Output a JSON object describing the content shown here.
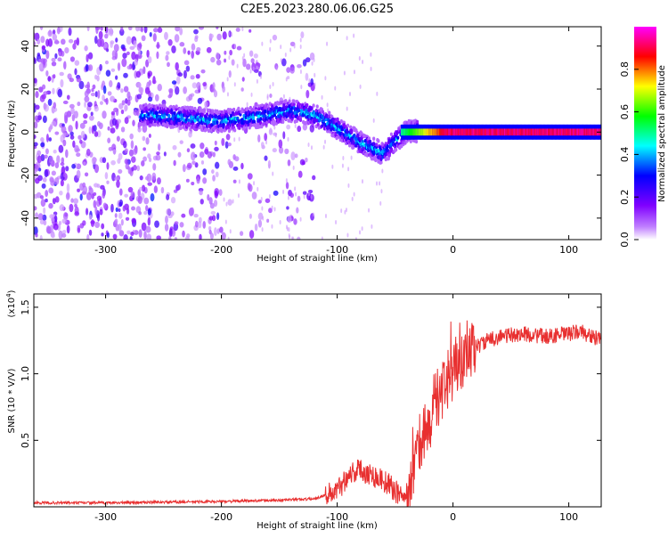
{
  "page": {
    "title": "C2E5.2023.280.06.06.G25"
  },
  "chart_data": [
    {
      "type": "heatmap",
      "title": "C2E5.2023.280.06.06.G25",
      "xlabel": "Height of straight line (km)",
      "ylabel": "Frequency (Hz)",
      "xlim": [
        -362,
        128
      ],
      "ylim": [
        -50,
        49
      ],
      "xticks": [
        -300,
        -200,
        -100,
        0,
        100
      ],
      "yticks": [
        -40,
        -20,
        0,
        20,
        40
      ],
      "colorbar": {
        "label": "Normalized spectral amplitude",
        "range": [
          0.0,
          1.0
        ],
        "ticks": [
          "0.0",
          "0.2",
          "0.4",
          "0.6",
          "0.8"
        ],
        "colors": [
          "#ffffff",
          "#8000ff",
          "#0000ff",
          "#00ffff",
          "#00ff00",
          "#ffff00",
          "#ff0000",
          "#ff00ff"
        ]
      },
      "features": [
        {
          "name": "broadband-noise",
          "x_range": [
            -362,
            -160
          ],
          "freq_range": [
            -50,
            49
          ],
          "amplitude": 0.15
        },
        {
          "name": "doppler-track",
          "points": [
            [
              -270,
              8
            ],
            [
              -240,
              7
            ],
            [
              -200,
              5
            ],
            [
              -170,
              7
            ],
            [
              -140,
              10
            ],
            [
              -120,
              8
            ],
            [
              -100,
              2
            ],
            [
              -80,
              -5
            ],
            [
              -60,
              -10
            ],
            [
              -50,
              -4
            ],
            [
              -40,
              0
            ],
            [
              -20,
              1
            ],
            [
              0,
              0
            ],
            [
              128,
              0
            ]
          ],
          "amplitude": 0.4
        },
        {
          "name": "carrier-line",
          "x_range": [
            -30,
            128
          ],
          "freq": 0,
          "amplitude": 0.95
        }
      ]
    },
    {
      "type": "line",
      "xlabel": "Height of straight line (km)",
      "ylabel": "SNR (10 * V/V)",
      "yscale_label": "(x10",
      "yscale_exponent": "4",
      "yscale_suffix": ")",
      "xlim": [
        -362,
        128
      ],
      "ylim": [
        0,
        1.6
      ],
      "xticks": [
        -300,
        -200,
        -100,
        0,
        100
      ],
      "yticks": [
        "0.5",
        "1.0",
        "1.5"
      ],
      "series": [
        {
          "color": "#e83030",
          "x": [
            -362,
            -300,
            -250,
            -200,
            -150,
            -120,
            -100,
            -90,
            -80,
            -70,
            -60,
            -50,
            -40,
            -35,
            -30,
            -25,
            -20,
            -15,
            -10,
            -5,
            0,
            10,
            20,
            30,
            40,
            60,
            80,
            100,
            110,
            120,
            128
          ],
          "y": [
            0.03,
            0.03,
            0.035,
            0.04,
            0.05,
            0.06,
            0.12,
            0.25,
            0.28,
            0.24,
            0.2,
            0.12,
            0.06,
            0.2,
            0.45,
            0.55,
            0.65,
            0.8,
            0.85,
            0.95,
            1.0,
            1.1,
            1.2,
            1.25,
            1.28,
            1.3,
            1.28,
            1.3,
            1.32,
            1.28,
            1.25
          ]
        }
      ]
    }
  ]
}
